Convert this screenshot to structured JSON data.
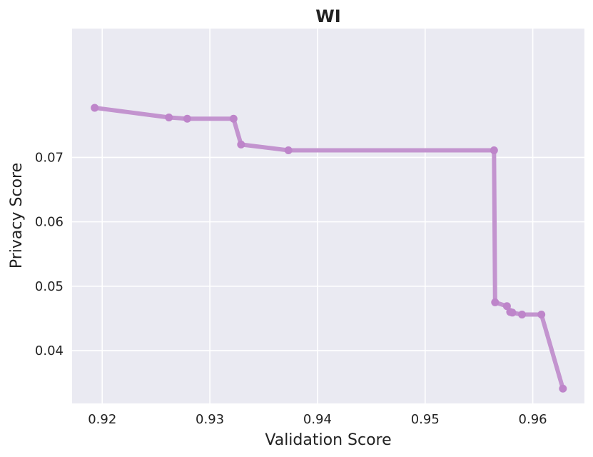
{
  "chart_data": {
    "type": "line",
    "title": "WI",
    "xlabel": "Validation Score",
    "ylabel": "Privacy Score",
    "xlim": [
      0.9172,
      0.9648
    ],
    "ylim": [
      0.0318,
      0.09
    ],
    "xticks": [
      0.92,
      0.93,
      0.94,
      0.95,
      0.96
    ],
    "xtick_labels": [
      "0.92",
      "0.93",
      "0.94",
      "0.95",
      "0.96"
    ],
    "yticks": [
      0.04,
      0.05,
      0.06,
      0.07
    ],
    "ytick_labels": [
      "0.04",
      "0.05",
      "0.06",
      "0.07"
    ],
    "grid": true,
    "colors": {
      "background": "#EAEAF2",
      "grid": "#FFFFFF",
      "line": "#C394CF",
      "marker": "#BE85CA"
    },
    "series": [
      {
        "x": [
          0.9193,
          0.9262,
          0.9279,
          0.9322,
          0.9329,
          0.9373,
          0.9564,
          0.9565,
          0.9576,
          0.9579,
          0.9581,
          0.959,
          0.9608,
          0.9628
        ],
        "y": [
          0.0777,
          0.0762,
          0.076,
          0.076,
          0.072,
          0.0711,
          0.0711,
          0.0475,
          0.0469,
          0.046,
          0.0459,
          0.0456,
          0.0456,
          0.0341
        ]
      }
    ]
  }
}
